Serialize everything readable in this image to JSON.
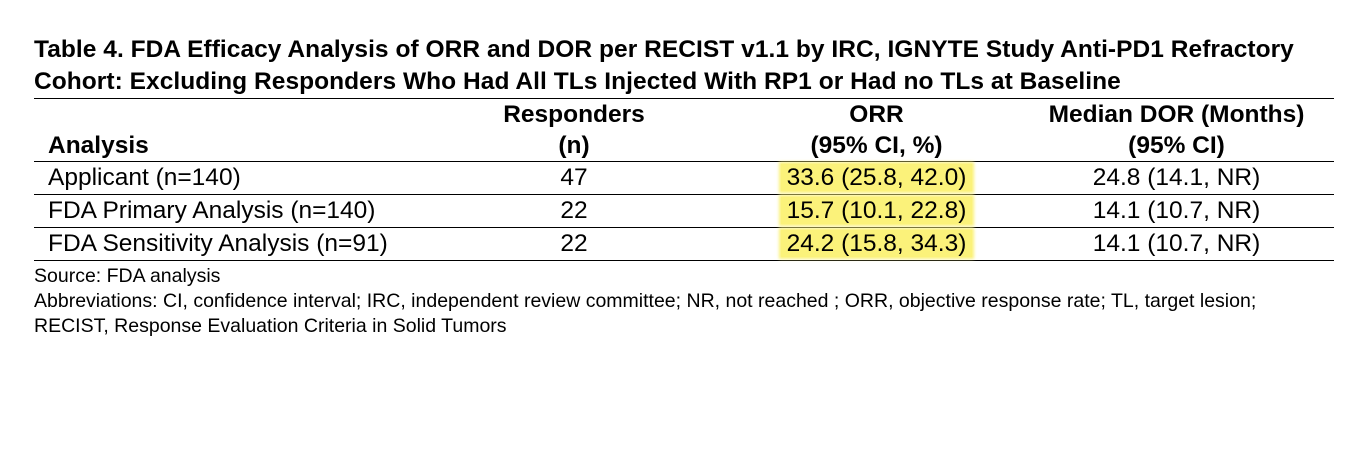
{
  "title": "Table 4. FDA Efficacy Analysis of ORR and DOR per RECIST v1.1 by IRC, IGNYTE Study Anti-PD1 Refractory Cohort: Excluding Responders Who Had All TLs Injected With RP1 or Had no TLs at Baseline",
  "headers": {
    "analysis": "Analysis",
    "responders_line1": "Responders",
    "responders_line2": "(n)",
    "orr_line1": "ORR",
    "orr_line2": "(95% CI, %)",
    "dor_line1": "Median DOR (Months)",
    "dor_line2": "(95% CI)"
  },
  "rows": [
    {
      "analysis": "Applicant (n=140)",
      "responders": "47",
      "orr": "33.6 (25.8, 42.0)",
      "dor": "24.8 (14.1, NR)"
    },
    {
      "analysis": "FDA Primary Analysis (n=140)",
      "responders": "22",
      "orr": "15.7 (10.1, 22.8)",
      "dor": "14.1 (10.7, NR)"
    },
    {
      "analysis": "FDA Sensitivity Analysis (n=91)",
      "responders": "22",
      "orr": "24.2 (15.8, 34.3)",
      "dor": "14.1 (10.7, NR)"
    }
  ],
  "highlight_color": "#fbf27a",
  "source": "Source: FDA analysis",
  "abbreviations": "Abbreviations: CI, confidence interval; IRC, independent review committee; NR, not reached ; ORR, objective response rate; TL, target lesion; RECIST, Response Evaluation Criteria in Solid Tumors"
}
